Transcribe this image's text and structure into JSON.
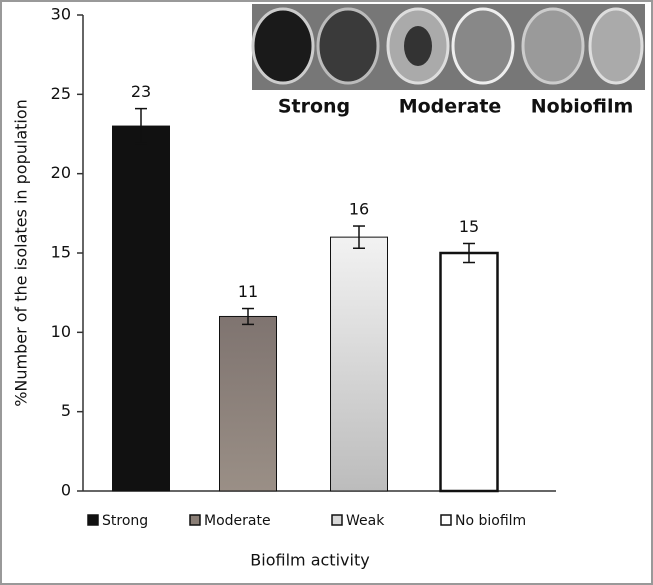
{
  "chart_data": {
    "type": "bar",
    "categories": [
      "Strong",
      "Moderate",
      "Weak",
      "No biofilm"
    ],
    "values": [
      23,
      11,
      16,
      15
    ],
    "errors": [
      1.1,
      0.5,
      0.7,
      0.6
    ],
    "colors": [
      "#111111",
      "#8a7e76",
      "#d8d8d8",
      "#ffffff"
    ],
    "ylim": [
      0,
      30
    ],
    "yticks": [
      0,
      5,
      10,
      15,
      20,
      25,
      30
    ],
    "ylabel": "%Number of the isolates in population",
    "xlabel": "Biofilm activity",
    "legend": "bottom"
  },
  "inset": {
    "labels": [
      "Strong",
      "Moderate",
      "Nobiofilm"
    ]
  }
}
